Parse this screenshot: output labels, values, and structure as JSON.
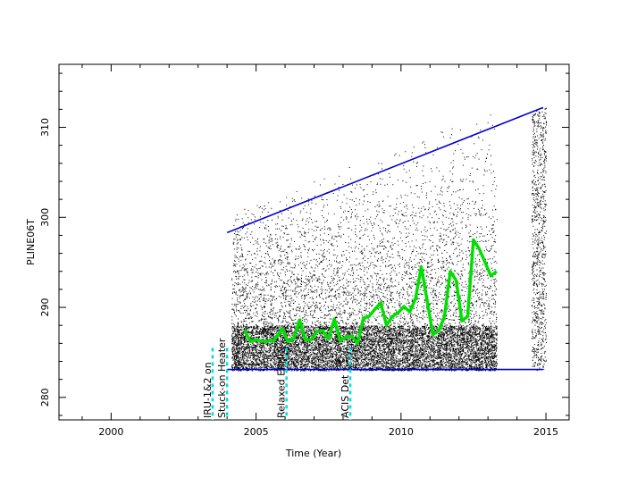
{
  "chart_data": {
    "type": "scatter",
    "xlabel": "Time (Year)",
    "ylabel": "PLINE06T",
    "xlim": [
      1998.2,
      2015.8
    ],
    "ylim": [
      277.5,
      317.0
    ],
    "x_ticks": [
      2000,
      2005,
      2010,
      2015
    ],
    "y_ticks": [
      280,
      290,
      300,
      310
    ],
    "grid": false,
    "colors": {
      "points": "#000000",
      "smooth": "#00e000",
      "limits": "#0000cc",
      "events": "#00dddd"
    },
    "scatter": {
      "x_start": 2004.15,
      "x_end": 2013.3,
      "band_low": 283.0,
      "band_high": 288.0,
      "gap": [
        2013.3,
        2014.5
      ],
      "late_x": [
        2014.5,
        2015.0
      ]
    },
    "upper_limit": {
      "x": [
        2004.0,
        2014.9
      ],
      "y": [
        298.3,
        312.2
      ]
    },
    "lower_limit": {
      "x": [
        2004.0,
        2014.9
      ],
      "y": [
        283.1,
        283.1
      ]
    },
    "smooth": {
      "x": [
        2004.6,
        2004.8,
        2005.0,
        2005.3,
        2005.6,
        2005.9,
        2006.1,
        2006.3,
        2006.5,
        2006.7,
        2006.9,
        2007.1,
        2007.3,
        2007.5,
        2007.7,
        2007.9,
        2008.1,
        2008.3,
        2008.5,
        2008.7,
        2008.9,
        2009.1,
        2009.3,
        2009.5,
        2009.7,
        2009.9,
        2010.1,
        2010.3,
        2010.5,
        2010.7,
        2010.9,
        2011.1,
        2011.3,
        2011.5,
        2011.7,
        2011.9,
        2012.1,
        2012.3,
        2012.5,
        2012.7,
        2012.9,
        2013.1,
        2013.3
      ],
      "y": [
        287.5,
        286.2,
        286.4,
        286.2,
        286.3,
        287.6,
        286.2,
        286.5,
        288.6,
        286.4,
        286.4,
        287.3,
        287.4,
        286.5,
        288.7,
        286.3,
        286.7,
        286.8,
        286.0,
        288.8,
        289.0,
        289.8,
        290.5,
        288.0,
        289.0,
        289.4,
        290.1,
        289.5,
        291.0,
        294.5,
        290.8,
        287.0,
        287.4,
        289.0,
        294.0,
        293.0,
        288.5,
        289.0,
        297.5,
        296.5,
        295.0,
        293.5,
        294.0
      ]
    },
    "events": [
      {
        "label": "IRU-1&2 on",
        "x": 2003.5
      },
      {
        "label": "Stuck-on Heater",
        "x": 2004.0
      },
      {
        "label": "Relaxed EPHIN",
        "x": 2006.05
      },
      {
        "label": "ACIS Det",
        "x": 2008.25
      }
    ]
  }
}
